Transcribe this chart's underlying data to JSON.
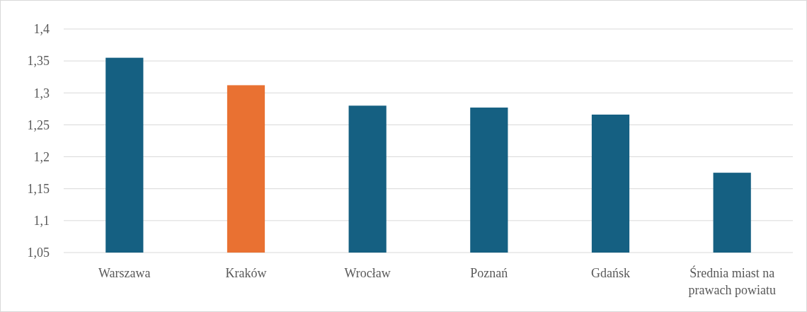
{
  "chart_data": {
    "type": "bar",
    "categories": [
      "Warszawa",
      "Kraków",
      "Wrocław",
      "Poznań",
      "Gdańsk",
      "Średnia miast na prawach powiatu"
    ],
    "values": [
      1.355,
      1.312,
      1.28,
      1.277,
      1.266,
      1.175
    ],
    "colors": [
      "#156082",
      "#e97132",
      "#156082",
      "#156082",
      "#156082",
      "#156082"
    ],
    "ylim": [
      1.05,
      1.4
    ],
    "yticks": [
      {
        "value": 1.05,
        "label": "1,05"
      },
      {
        "value": 1.1,
        "label": "1,1"
      },
      {
        "value": 1.15,
        "label": "1,15"
      },
      {
        "value": 1.2,
        "label": "1,2"
      },
      {
        "value": 1.25,
        "label": "1,25"
      },
      {
        "value": 1.3,
        "label": "1,3"
      },
      {
        "value": 1.35,
        "label": "1,35"
      },
      {
        "value": 1.4,
        "label": "1,4"
      }
    ],
    "grid": "y"
  }
}
